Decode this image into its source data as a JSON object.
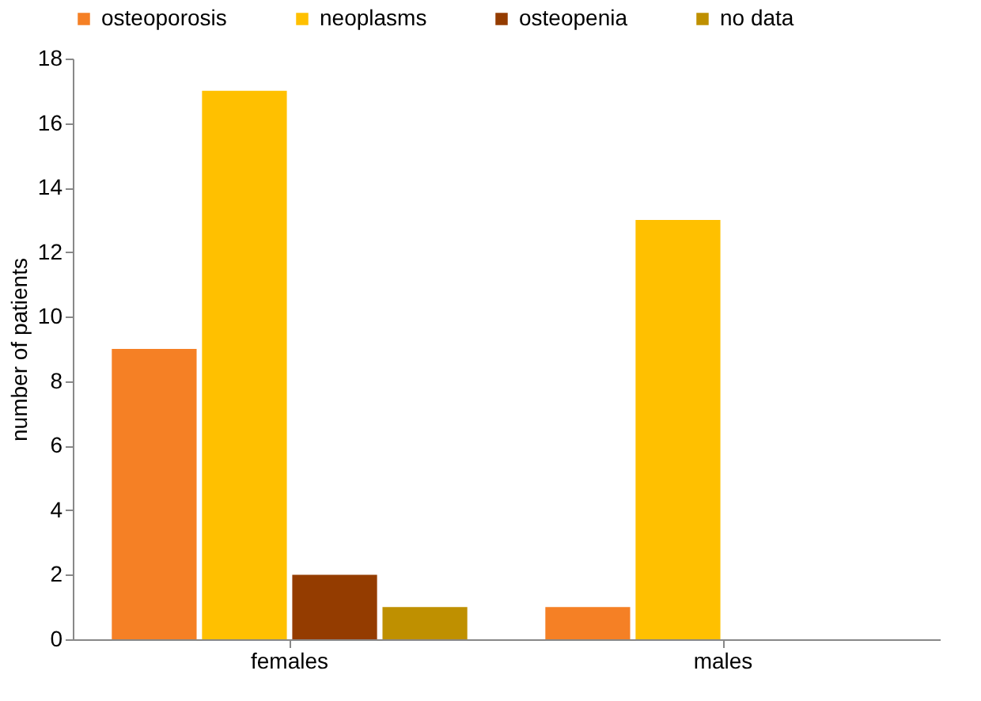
{
  "chart_data": {
    "type": "bar",
    "ylabel": "number of patients",
    "categories": [
      "females",
      "males"
    ],
    "series": [
      {
        "name": "osteoporosis",
        "color": "#f58025",
        "values": [
          9,
          1
        ]
      },
      {
        "name": "neoplasms",
        "color": "#ffc000",
        "values": [
          17,
          13
        ]
      },
      {
        "name": "osteopenia",
        "color": "#943c00",
        "values": [
          2,
          0
        ]
      },
      {
        "name": "no data",
        "color": "#bf9000",
        "values": [
          1,
          0
        ]
      }
    ],
    "ylim": [
      0,
      18
    ],
    "yticks": [
      0,
      2,
      4,
      6,
      8,
      10,
      12,
      14,
      16,
      18
    ],
    "grid": false,
    "legend": "top"
  }
}
